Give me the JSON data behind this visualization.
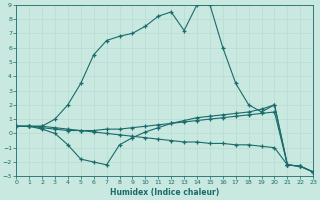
{
  "xlabel": "Humidex (Indice chaleur)",
  "xlim": [
    0,
    23
  ],
  "ylim": [
    -3,
    9
  ],
  "xticks": [
    0,
    1,
    2,
    3,
    4,
    5,
    6,
    7,
    8,
    9,
    10,
    11,
    12,
    13,
    14,
    15,
    16,
    17,
    18,
    19,
    20,
    21,
    22,
    23
  ],
  "yticks": [
    -3,
    -2,
    -1,
    0,
    1,
    2,
    3,
    4,
    5,
    6,
    7,
    8,
    9
  ],
  "bg_color": "#c8e8e0",
  "line_color": "#1a6b6b",
  "grid_color": "#b8dcd4",
  "lines": [
    {
      "x": [
        0,
        1,
        2,
        3,
        4,
        5,
        6,
        7,
        8,
        9,
        10,
        11,
        12,
        13,
        14,
        15,
        16,
        17,
        18,
        19,
        20,
        21,
        22,
        23
      ],
      "y": [
        0.5,
        0.5,
        0.5,
        1.0,
        2.0,
        3.5,
        5.5,
        6.5,
        6.8,
        7.0,
        7.5,
        8.2,
        8.5,
        7.2,
        9.0,
        9.0,
        6.0,
        3.5,
        2.0,
        1.5,
        2.0,
        -2.2,
        -2.3,
        -2.7
      ]
    },
    {
      "x": [
        0,
        1,
        2,
        3,
        4,
        5,
        6,
        7,
        8,
        9,
        10,
        11,
        12,
        13,
        14,
        15,
        16,
        17,
        18,
        19,
        20,
        21,
        22,
        23
      ],
      "y": [
        0.5,
        0.5,
        0.3,
        0.0,
        -0.8,
        -1.8,
        -2.0,
        -2.2,
        -0.8,
        -0.3,
        0.1,
        0.4,
        0.7,
        0.9,
        1.1,
        1.2,
        1.3,
        1.4,
        1.5,
        1.7,
        2.0,
        -2.2,
        -2.3,
        -2.7
      ]
    },
    {
      "x": [
        0,
        1,
        2,
        3,
        4,
        5,
        6,
        7,
        8,
        9,
        10,
        11,
        12,
        13,
        14,
        15,
        16,
        17,
        18,
        19,
        20,
        21,
        22,
        23
      ],
      "y": [
        0.5,
        0.5,
        0.4,
        0.3,
        0.2,
        0.2,
        0.2,
        0.3,
        0.3,
        0.4,
        0.5,
        0.6,
        0.7,
        0.8,
        0.9,
        1.0,
        1.1,
        1.2,
        1.3,
        1.4,
        1.5,
        -2.2,
        -2.3,
        -2.7
      ]
    },
    {
      "x": [
        0,
        1,
        2,
        3,
        4,
        5,
        6,
        7,
        8,
        9,
        10,
        11,
        12,
        13,
        14,
        15,
        16,
        17,
        18,
        19,
        20,
        21,
        22,
        23
      ],
      "y": [
        0.5,
        0.5,
        0.5,
        0.4,
        0.3,
        0.2,
        0.1,
        0.0,
        -0.1,
        -0.2,
        -0.3,
        -0.4,
        -0.5,
        -0.6,
        -0.6,
        -0.7,
        -0.7,
        -0.8,
        -0.8,
        -0.9,
        -1.0,
        -2.2,
        -2.3,
        -2.7
      ]
    }
  ]
}
